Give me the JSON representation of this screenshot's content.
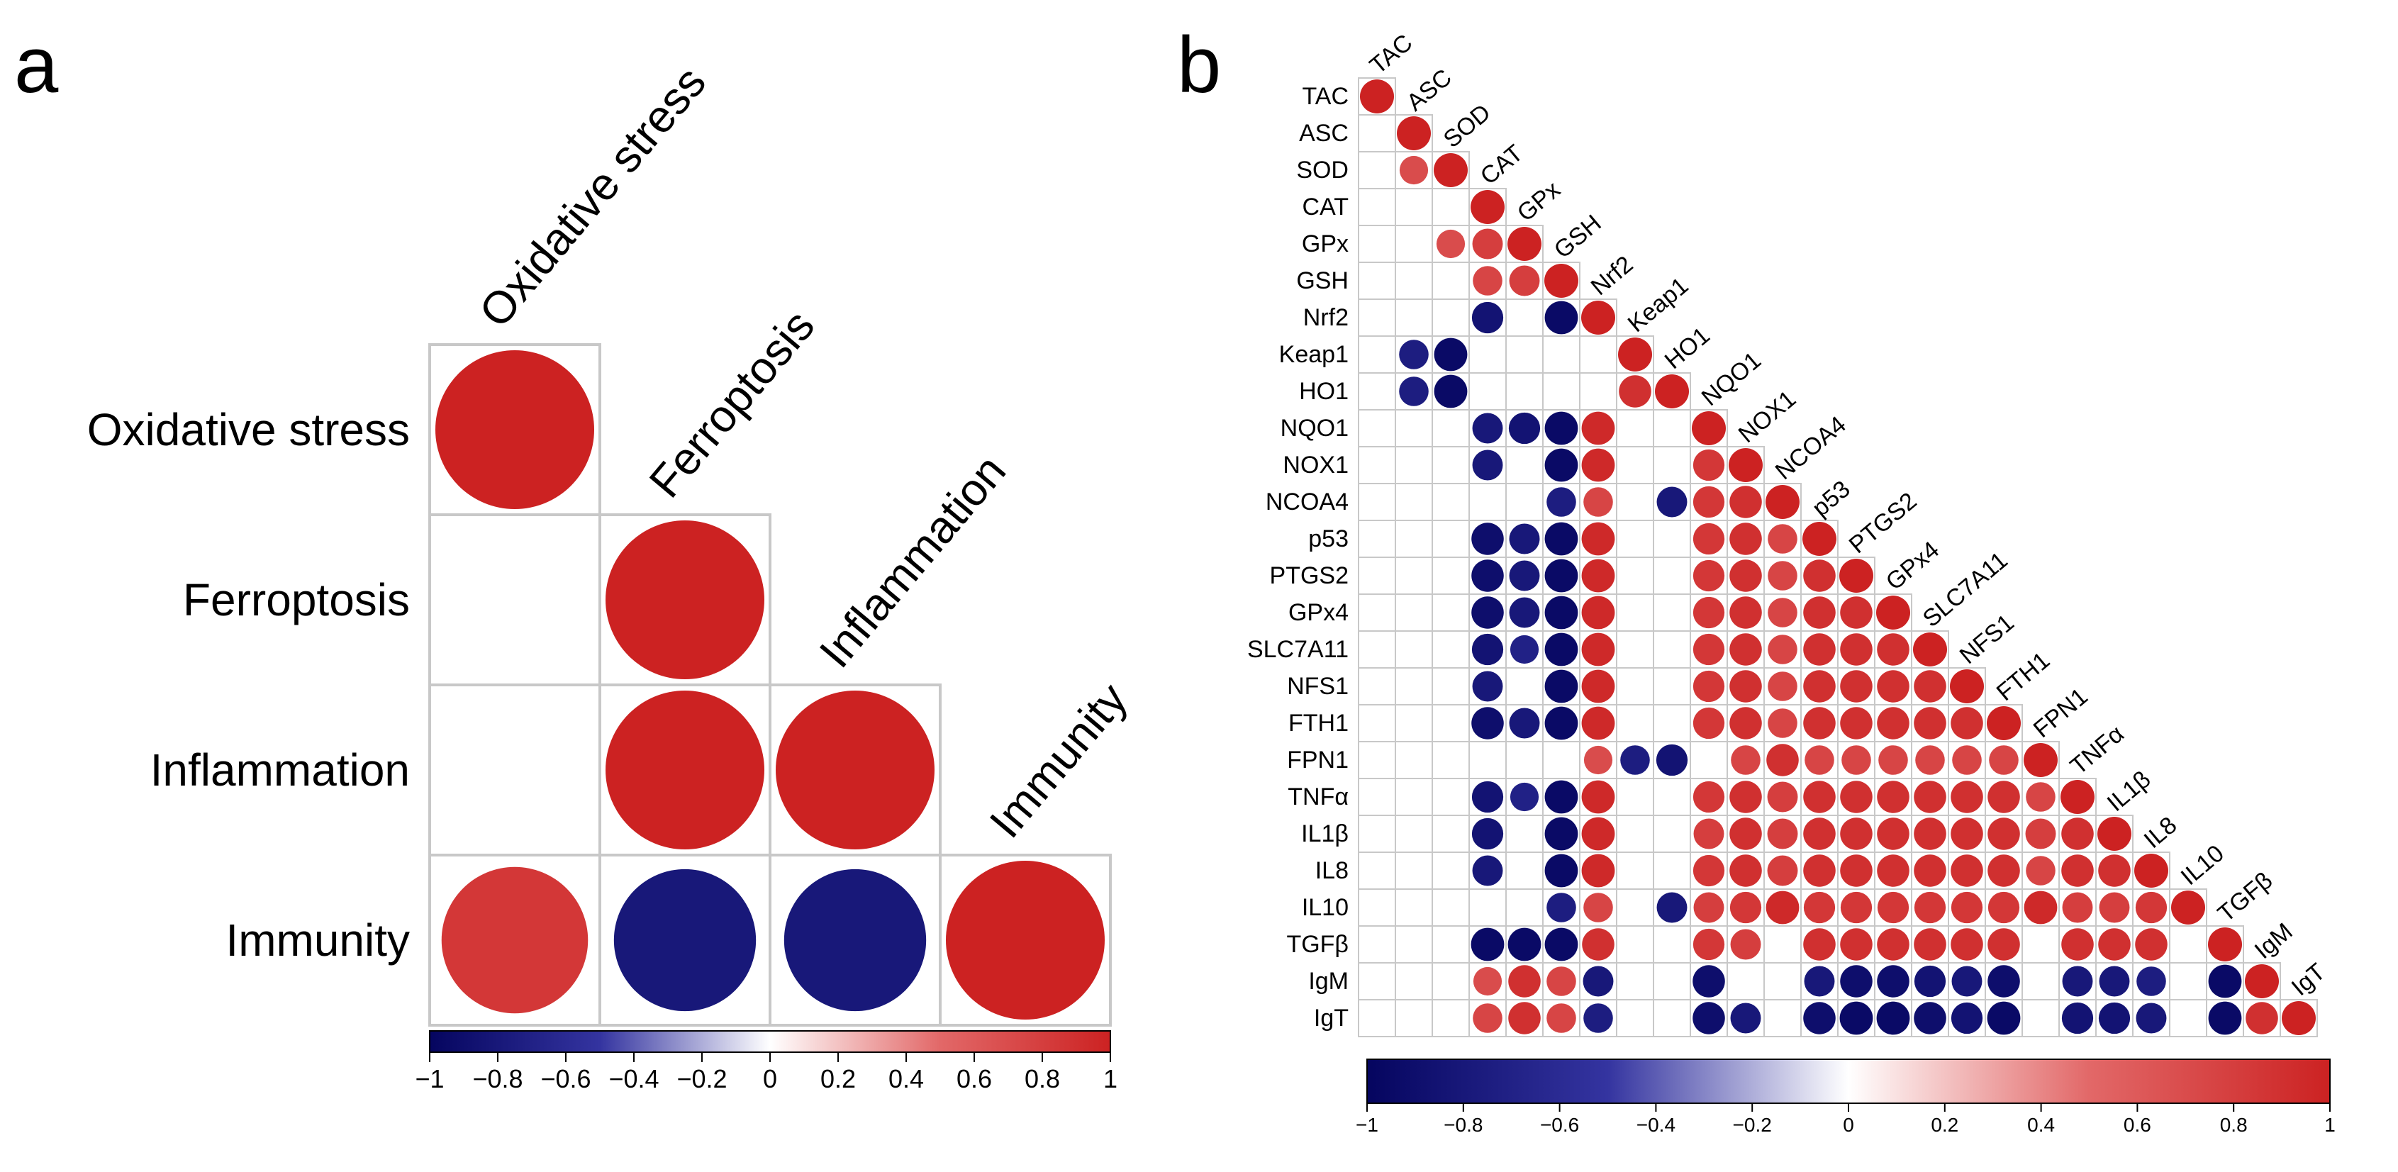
{
  "colors": {
    "neg_strong": "#05055f",
    "neg_mid": "#3434a0",
    "neutral": "#ffffff",
    "pos_mid": "#e26868",
    "pos_strong": "#cc2222",
    "grid": "#c8c8c8"
  },
  "chart_data": [
    {
      "panel": "a",
      "type": "heatmap",
      "subtype": "correlation-circles-lower-triangle",
      "variables": [
        "Oxidative stress",
        "Ferroptosis",
        "Inflammation",
        "Immunity"
      ],
      "matrix": [
        [
          1,
          null,
          null,
          null
        ],
        [
          null,
          1,
          null,
          null
        ],
        [
          null,
          1,
          1,
          null
        ],
        [
          0.85,
          -0.8,
          -0.8,
          1
        ]
      ],
      "color_scale": {
        "range": [
          -1,
          1
        ],
        "ticks": [
          "−1",
          "−0.8",
          "−0.6",
          "−0.4",
          "−0.2",
          "0",
          "0.2",
          "0.4",
          "0.6",
          "0.8",
          "1"
        ]
      }
    },
    {
      "panel": "b",
      "type": "heatmap",
      "subtype": "correlation-circles-lower-triangle",
      "variables": [
        "TAC",
        "ASC",
        "SOD",
        "CAT",
        "GPx",
        "GSH",
        "Nrf2",
        "Keap1",
        "HO1",
        "NQO1",
        "NOX1",
        "NCOA4",
        "p53",
        "PTGS2",
        "GPx4",
        "SLC7A11",
        "NFS1",
        "FTH1",
        "FPN1",
        "TNFα",
        "IL1β",
        "IL8",
        "IL10",
        "TGFβ",
        "IgM",
        "IgT"
      ],
      "matrix": [
        [
          1
        ],
        [
          null,
          1
        ],
        [
          null,
          0.7,
          1
        ],
        [
          null,
          null,
          null,
          1
        ],
        [
          null,
          null,
          0.7,
          0.8,
          1
        ],
        [
          null,
          null,
          null,
          0.75,
          0.8,
          1
        ],
        [
          null,
          null,
          null,
          -0.85,
          null,
          -0.95,
          1
        ],
        [
          null,
          -0.75,
          -0.95,
          null,
          null,
          null,
          null,
          1
        ],
        [
          null,
          -0.75,
          -0.95,
          null,
          null,
          null,
          null,
          0.9,
          1
        ],
        [
          null,
          null,
          null,
          -0.8,
          -0.85,
          -0.95,
          0.95,
          null,
          null,
          1
        ],
        [
          null,
          null,
          null,
          -0.8,
          null,
          -0.95,
          0.95,
          null,
          null,
          0.85,
          1
        ],
        [
          null,
          null,
          null,
          null,
          null,
          -0.75,
          0.75,
          null,
          -0.8,
          0.85,
          0.9,
          1
        ],
        [
          null,
          null,
          null,
          -0.9,
          -0.8,
          -0.95,
          0.95,
          null,
          null,
          0.85,
          0.9,
          0.75,
          1
        ],
        [
          null,
          null,
          null,
          -0.9,
          -0.8,
          -0.95,
          0.95,
          null,
          null,
          0.85,
          0.9,
          0.75,
          0.9,
          1
        ],
        [
          null,
          null,
          null,
          -0.9,
          -0.8,
          -0.95,
          0.95,
          null,
          null,
          0.85,
          0.9,
          0.75,
          0.9,
          0.9,
          1
        ],
        [
          null,
          null,
          null,
          -0.85,
          -0.7,
          -0.95,
          0.95,
          null,
          null,
          0.85,
          0.9,
          0.75,
          0.9,
          0.9,
          0.9,
          1
        ],
        [
          null,
          null,
          null,
          -0.8,
          null,
          -0.95,
          0.95,
          null,
          null,
          0.85,
          0.9,
          0.75,
          0.9,
          0.9,
          0.9,
          0.9,
          1
        ],
        [
          null,
          null,
          null,
          -0.9,
          -0.8,
          -0.95,
          0.95,
          null,
          null,
          0.85,
          0.9,
          0.75,
          0.9,
          0.9,
          0.9,
          0.9,
          0.9,
          1
        ],
        [
          null,
          null,
          null,
          null,
          null,
          null,
          0.7,
          -0.75,
          -0.85,
          null,
          0.75,
          0.9,
          0.75,
          0.75,
          0.75,
          0.75,
          0.75,
          0.75,
          1
        ],
        [
          null,
          null,
          null,
          -0.85,
          -0.7,
          -0.95,
          0.95,
          null,
          null,
          0.85,
          0.9,
          0.8,
          0.9,
          0.9,
          0.9,
          0.9,
          0.9,
          0.9,
          0.75,
          1
        ],
        [
          null,
          null,
          null,
          -0.85,
          null,
          -0.95,
          0.95,
          null,
          null,
          0.8,
          0.9,
          0.8,
          0.9,
          0.9,
          0.9,
          0.9,
          0.9,
          0.9,
          0.8,
          0.9,
          1
        ],
        [
          null,
          null,
          null,
          -0.8,
          null,
          -0.95,
          0.95,
          null,
          null,
          0.85,
          0.9,
          0.8,
          0.9,
          0.9,
          0.9,
          0.9,
          0.9,
          0.9,
          0.75,
          0.9,
          0.9,
          1
        ],
        [
          null,
          null,
          null,
          null,
          null,
          -0.75,
          0.75,
          null,
          -0.8,
          0.8,
          0.85,
          0.95,
          0.85,
          0.85,
          0.85,
          0.85,
          0.85,
          0.85,
          0.95,
          0.8,
          0.8,
          0.85,
          1
        ],
        [
          null,
          null,
          null,
          -0.95,
          -0.95,
          -0.95,
          0.9,
          null,
          null,
          0.85,
          0.8,
          null,
          0.9,
          0.9,
          0.9,
          0.9,
          0.9,
          0.9,
          null,
          0.9,
          0.9,
          0.9,
          null,
          1
        ],
        [
          null,
          null,
          null,
          0.7,
          0.9,
          0.75,
          -0.8,
          null,
          null,
          -0.9,
          null,
          null,
          -0.8,
          -0.9,
          -0.9,
          -0.85,
          -0.8,
          -0.9,
          null,
          -0.8,
          -0.8,
          -0.75,
          null,
          -0.95,
          1
        ],
        [
          null,
          null,
          null,
          0.75,
          0.9,
          0.75,
          -0.75,
          null,
          null,
          -0.9,
          -0.8,
          null,
          -0.9,
          -0.95,
          -0.95,
          -0.9,
          -0.85,
          -0.95,
          null,
          -0.85,
          -0.85,
          -0.8,
          null,
          -0.95,
          0.9,
          1
        ]
      ],
      "color_scale": {
        "range": [
          -1,
          1
        ],
        "ticks": [
          "−1",
          "−0.8",
          "−0.6",
          "−0.4",
          "−0.2",
          "0",
          "0.2",
          "0.4",
          "0.6",
          "0.8",
          "1"
        ]
      }
    }
  ],
  "panels": {
    "a": {
      "label": "a"
    },
    "b": {
      "label": "b"
    }
  }
}
